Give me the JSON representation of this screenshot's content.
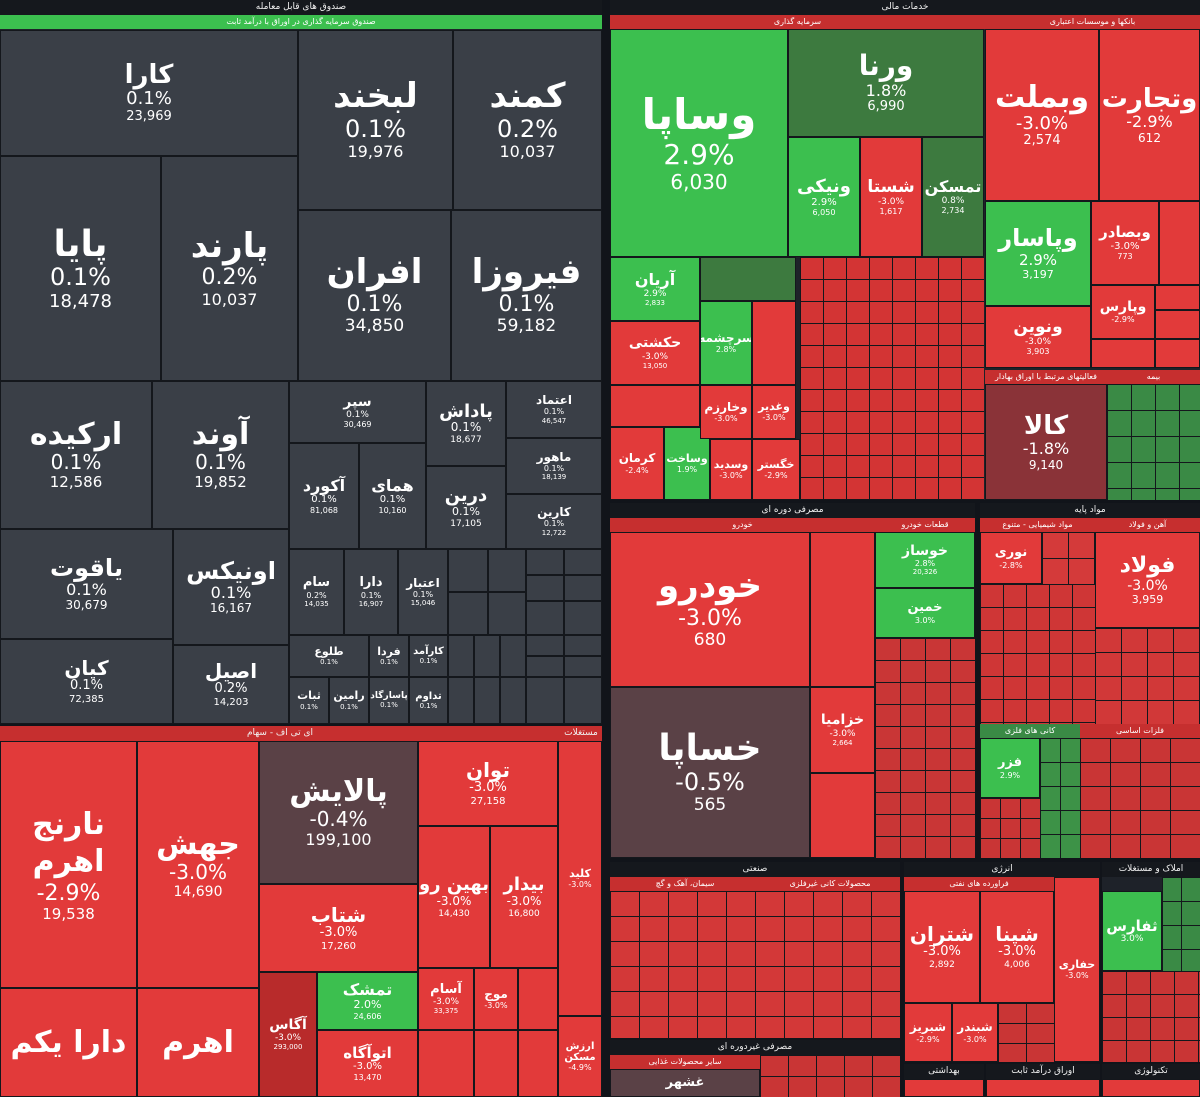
{
  "sections": {
    "funds": {
      "title": "صندوق های قابل معامله",
      "subtitle": "صندوق سرمایه گذاری در اوراق با درآمد ثابت"
    },
    "finance": {
      "title": "خدمات مالی",
      "investment": "سرمایه گذاری",
      "banks": "بانکها و موسسات اعتباری",
      "other_fin": "فعالیتهای مرتبط با اوراق بهادار",
      "insurance": "بیمه"
    },
    "etf": {
      "title": "ای تی اف - سهام",
      "extra": "مستغلات"
    },
    "durables": {
      "title": "مصرفی دوره ای",
      "auto": "خودرو",
      "parts": "قطعات خودرو"
    },
    "basic": {
      "title": "مواد پایه",
      "chem": "مواد شیمیایی - متنوع",
      "steel": "آهن و فولاد",
      "metals": "فلزات اساسی",
      "nonferrous": "کانی های فلزی"
    },
    "industrial": {
      "title": "صنعتی",
      "cement": "سیمان، آهک و گچ",
      "minerals": "محصولات کانی غیرفلزی"
    },
    "energy": {
      "title": "انرژی",
      "refinery": "فراورده های نفتی"
    },
    "realestate": {
      "title": "املاک و مستغلات"
    },
    "consumer": {
      "title": "مصرفی غیردوره ای",
      "food": "سایر محصولات غذایی"
    },
    "health": {
      "title": "بهداشتی"
    },
    "fixed": {
      "title": "اوراق درآمد ثابت"
    },
    "tech": {
      "title": "تکنولوژی"
    }
  },
  "tiles": {
    "kara": {
      "name": "کارا",
      "pct": "0.1%",
      "vol": "23,969"
    },
    "labkhand": {
      "name": "لبخند",
      "pct": "0.1%",
      "vol": "19,976"
    },
    "kamand": {
      "name": "کمند",
      "pct": "0.2%",
      "vol": "10,037"
    },
    "paya": {
      "name": "پایا",
      "pct": "0.1%",
      "vol": "18,478"
    },
    "parand": {
      "name": "پارند",
      "pct": "0.2%",
      "vol": "10,037"
    },
    "afran": {
      "name": "افران",
      "pct": "0.1%",
      "vol": "34,850"
    },
    "firouza": {
      "name": "فیروزا",
      "pct": "0.1%",
      "vol": "59,182"
    },
    "arkide": {
      "name": "ارکیده",
      "pct": "0.1%",
      "vol": "12,586"
    },
    "avand": {
      "name": "آوند",
      "pct": "0.1%",
      "vol": "19,852"
    },
    "sepehr": {
      "name": "سپر",
      "pct": "0.1%",
      "vol": "30,469"
    },
    "padash": {
      "name": "پاداش",
      "pct": "0.1%",
      "vol": "18,677"
    },
    "etemad": {
      "name": "اعتماد",
      "pct": "0.1%",
      "vol": "46,547"
    },
    "akord": {
      "name": "آکورد",
      "pct": "0.1%",
      "vol": "81,068"
    },
    "homay": {
      "name": "همای",
      "pct": "0.1%",
      "vol": "10,160"
    },
    "dorin": {
      "name": "درین",
      "pct": "0.1%",
      "vol": "17,105"
    },
    "mahour": {
      "name": "ماهور",
      "pct": "0.1%",
      "vol": "18,139"
    },
    "karin": {
      "name": "کارین",
      "pct": "0.1%",
      "vol": "12,722"
    },
    "yaghout": {
      "name": "یاقوت",
      "pct": "0.1%",
      "vol": "30,679"
    },
    "onyx": {
      "name": "اونیکس",
      "pct": "0.1%",
      "vol": "16,167"
    },
    "sam": {
      "name": "سام",
      "pct": "0.2%",
      "vol": "14,035"
    },
    "dara": {
      "name": "دارا",
      "pct": "0.1%",
      "vol": "16,907"
    },
    "etebar": {
      "name": "اعتبار",
      "pct": "0.1%",
      "vol": "15,046"
    },
    "kian": {
      "name": "کیان",
      "pct": "0.1%",
      "vol": "72,385"
    },
    "asil": {
      "name": "اصیل",
      "pct": "0.2%",
      "vol": "14,203"
    },
    "tolou": {
      "name": "طلوع",
      "pct": "0.1%"
    },
    "farda": {
      "name": "فردا",
      "pct": "0.1%"
    },
    "karamad": {
      "name": "کارآمد",
      "pct": "0.1%"
    },
    "sabat": {
      "name": "ثبات",
      "pct": "0.1%"
    },
    "ramin": {
      "name": "رامین",
      "pct": "0.1%"
    },
    "pasargad": {
      "name": "پاسارگاد",
      "pct": "0.1%"
    },
    "tadavom": {
      "name": "تداوم",
      "pct": "0.1%"
    },
    "vasapa": {
      "name": "وساپا",
      "pct": "2.9%",
      "vol": "6,030"
    },
    "varna": {
      "name": "ورنا",
      "pct": "1.8%",
      "vol": "6,990"
    },
    "vanik": {
      "name": "ونیکی",
      "pct": "2.9%",
      "vol": "6,050"
    },
    "shasta": {
      "name": "شستا",
      "pct": "-3.0%",
      "vol": "1,617"
    },
    "tamasakan": {
      "name": "تمسکن",
      "pct": "0.8%",
      "vol": "2,734"
    },
    "vabmellat": {
      "name": "وبملت",
      "pct": "-3.0%",
      "vol": "2,574"
    },
    "vtejarat": {
      "name": "وتجارت",
      "pct": "-2.9%",
      "vol": "612"
    },
    "vpasar": {
      "name": "وپاسار",
      "pct": "2.9%",
      "vol": "3,197"
    },
    "vbsader": {
      "name": "وبصادر",
      "pct": "-3.0%",
      "vol": "773"
    },
    "vnovin": {
      "name": "ونوین",
      "pct": "-3.0%",
      "vol": "3,903"
    },
    "varis": {
      "name": "وپارس",
      "pct": "-2.9%"
    },
    "arian": {
      "name": "آریان",
      "pct": "2.9%",
      "vol": "2,833"
    },
    "hekmat": {
      "name": "حکشتی",
      "pct": "-3.0%",
      "vol": "13,050"
    },
    "sarmad": {
      "name": "سرچشمه",
      "pct": "2.8%"
    },
    "kala": {
      "name": "کالا",
      "pct": "-1.8%",
      "vol": "9,140"
    },
    "kerman": {
      "name": "کرمان",
      "pct": "-2.4%"
    },
    "vsakht": {
      "name": "وساخت",
      "pct": "1.9%"
    },
    "vkharazm": {
      "name": "وخارزم",
      "pct": "-3.0%"
    },
    "vghadir": {
      "name": "وغدیر",
      "pct": "-3.0%"
    },
    "khegostar": {
      "name": "خگستر",
      "pct": "-2.9%"
    },
    "vsandid": {
      "name": "وسدید",
      "pct": "-3.0%"
    },
    "khodro": {
      "name": "خودرو",
      "pct": "-3.0%",
      "vol": "680"
    },
    "khsapa": {
      "name": "خساپا",
      "pct": "-0.5%",
      "vol": "565"
    },
    "khazamia": {
      "name": "خزامیا",
      "pct": "-3.0%",
      "vol": "2,664"
    },
    "khosaz": {
      "name": "خوساز",
      "pct": "2.8%",
      "vol": "20,326"
    },
    "khamin": {
      "name": "خمین",
      "pct": "3.0%"
    },
    "foulad": {
      "name": "فولاد",
      "pct": "-3.0%",
      "vol": "3,959"
    },
    "nouri": {
      "name": "نوری",
      "pct": "-2.8%"
    },
    "fazr": {
      "name": "فزر",
      "pct": "2.9%"
    },
    "naranj": {
      "name": "نارنج اهرم",
      "pct": "-2.9%",
      "vol": "19,538"
    },
    "jahesh": {
      "name": "جهش",
      "pct": "-3.0%",
      "vol": "14,690"
    },
    "palayesh": {
      "name": "پالایش",
      "pct": "-0.4%",
      "vol": "199,100"
    },
    "tavan": {
      "name": "توان",
      "pct": "-3.0%",
      "vol": "27,158"
    },
    "behinro": {
      "name": "بهین رو",
      "pct": "-3.0%",
      "vol": "14,430"
    },
    "bidar": {
      "name": "بیدار",
      "pct": "-3.0%",
      "vol": "16,800"
    },
    "shetab": {
      "name": "شتاب",
      "pct": "-3.0%",
      "vol": "17,260"
    },
    "tamashk": {
      "name": "تمشک",
      "pct": "2.0%",
      "vol": "24,606"
    },
    "agas": {
      "name": "آگاس",
      "pct": "-3.0%",
      "vol": "293,000"
    },
    "asam": {
      "name": "آسام",
      "pct": "-3.0%",
      "vol": "33,375"
    },
    "mowj": {
      "name": "موج",
      "pct": "-3.0%"
    },
    "atougah": {
      "name": "اتوآگاه",
      "pct": "-3.0%",
      "vol": "13,470"
    },
    "darayekom": {
      "name": "دارا یکم"
    },
    "ahrom": {
      "name": "اهرم"
    },
    "kalid": {
      "name": "کلید",
      "pct": "-3.0%"
    },
    "arzesh": {
      "name": "ارزش مسکن",
      "pct": "-4.9%"
    },
    "shatran": {
      "name": "شتران",
      "pct": "-3.0%",
      "vol": "2,892"
    },
    "shiana": {
      "name": "شپنا",
      "pct": "-3.0%",
      "vol": "4,006"
    },
    "shabriz": {
      "name": "شبریز",
      "pct": "-2.9%"
    },
    "shebandar": {
      "name": "شبندر",
      "pct": "-3.0%"
    },
    "hafari": {
      "name": "حفاری",
      "pct": "-3.0%"
    },
    "tafars": {
      "name": "ثفارس",
      "pct": "3.0%"
    },
    "ghashahr": {
      "name": "غشهر"
    }
  }
}
